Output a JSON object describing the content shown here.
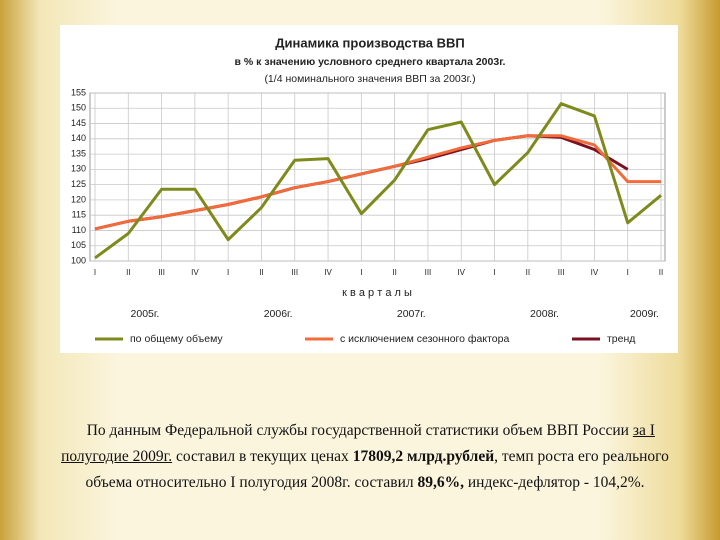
{
  "chart_data": {
    "type": "line",
    "title": "Динамика производства ВВП",
    "subtitle": "в % к значению условного среднего квартала 2003г.",
    "note": "(1/4 номинального значения ВВП за 2003г.)",
    "xlabel": "к в а р т а л ы",
    "categories": [
      "I",
      "II",
      "III",
      "IV",
      "I",
      "II",
      "III",
      "IV",
      "I",
      "II",
      "III",
      "IV",
      "I",
      "II",
      "III",
      "IV",
      "I",
      "II"
    ],
    "years": [
      "2005г.",
      "2006г.",
      "2007г.",
      "2008г.",
      "2009г."
    ],
    "ylim": [
      100,
      155
    ],
    "yticks": [
      100,
      105,
      110,
      115,
      120,
      125,
      130,
      135,
      140,
      145,
      150,
      155
    ],
    "grid": true,
    "series": [
      {
        "name": "по общему объему",
        "color": "#7f8a1c",
        "values": [
          101,
          109,
          123.5,
          123.5,
          107,
          117.5,
          133,
          133.5,
          115.5,
          126.5,
          143,
          145.5,
          125,
          135.5,
          151.5,
          147.5,
          112.5,
          121.5
        ]
      },
      {
        "name": "с исключением сезонного фактора",
        "color": "#f26b3a",
        "values": [
          110.5,
          113,
          114.5,
          116.5,
          118.5,
          121,
          124,
          126,
          128.5,
          131,
          134,
          137,
          139.5,
          141,
          141,
          138,
          126,
          126
        ]
      },
      {
        "name": "тренд",
        "color": "#7a1020",
        "values": [
          110.5,
          113,
          114.5,
          116.5,
          118.5,
          121,
          124,
          126,
          128.5,
          131,
          133.5,
          136.5,
          139.5,
          141,
          140.5,
          136.5,
          130,
          null
        ]
      }
    ]
  },
  "caption": {
    "parts": [
      "По данным Федеральной службы государственной статистики объем ВВП России ",
      "за I полугодие 2009г.",
      " составил в текущих ценах ",
      "17809,2 млрд.рублей",
      ", темп роста его реального объема относительно I полугодия 2008г. составил ",
      "89,6%,",
      " индекс-дефлятор - 104,2%."
    ]
  }
}
